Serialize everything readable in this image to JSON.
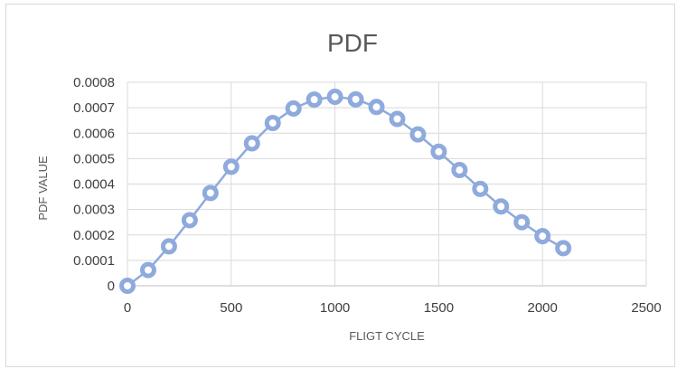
{
  "chart_data": {
    "type": "scatter",
    "title": "PDF",
    "xlabel": "FLIGT CYCLE",
    "ylabel": "PDF VALUE",
    "xlim": [
      0,
      2500
    ],
    "ylim": [
      0,
      0.0008
    ],
    "x_ticks": [
      "0",
      "500",
      "1000",
      "1500",
      "2000",
      "2500"
    ],
    "y_ticks": [
      "0",
      "0.0001",
      "0.0002",
      "0.0003",
      "0.0004",
      "0.0005",
      "0.0006",
      "0.0007",
      "0.0008"
    ],
    "grid": true,
    "legend": "none",
    "series": [
      {
        "color": "#8faadc",
        "x": [
          0,
          100,
          200,
          300,
          400,
          500,
          600,
          700,
          800,
          900,
          1000,
          1100,
          1200,
          1300,
          1400,
          1500,
          1600,
          1700,
          1800,
          1900,
          2000,
          2100
        ],
        "y": [
          0,
          6.2e-05,
          0.000155,
          0.000258,
          0.000365,
          0.000468,
          0.00056,
          0.00064,
          0.000697,
          0.000732,
          0.000743,
          0.000733,
          0.000703,
          0.000656,
          0.000595,
          0.000527,
          0.000455,
          0.000381,
          0.000312,
          0.00025,
          0.000195,
          0.000148
        ]
      }
    ]
  }
}
